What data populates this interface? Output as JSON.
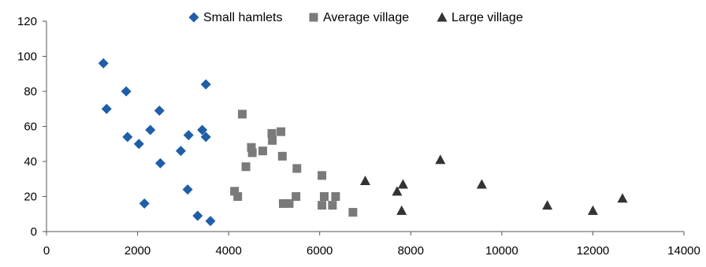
{
  "chart_data": {
    "type": "scatter",
    "title": "",
    "xlabel": "",
    "ylabel": "",
    "xlim": [
      0,
      14000
    ],
    "ylim": [
      0,
      120
    ],
    "x_ticks": [
      0,
      2000,
      4000,
      6000,
      8000,
      10000,
      12000,
      14000
    ],
    "y_ticks": [
      0,
      20,
      40,
      60,
      80,
      100,
      120
    ],
    "grid": false,
    "legend": "top",
    "series": [
      {
        "name": "Small hamlets",
        "marker": "diamond",
        "color": "#1f5ea8",
        "points": [
          {
            "x": 1250,
            "y": 96
          },
          {
            "x": 1320,
            "y": 70
          },
          {
            "x": 1750,
            "y": 80
          },
          {
            "x": 1780,
            "y": 54
          },
          {
            "x": 2030,
            "y": 50
          },
          {
            "x": 2150,
            "y": 16
          },
          {
            "x": 2280,
            "y": 58
          },
          {
            "x": 2480,
            "y": 69
          },
          {
            "x": 2500,
            "y": 39
          },
          {
            "x": 2950,
            "y": 46
          },
          {
            "x": 3100,
            "y": 24
          },
          {
            "x": 3120,
            "y": 55
          },
          {
            "x": 3320,
            "y": 9
          },
          {
            "x": 3420,
            "y": 58
          },
          {
            "x": 3500,
            "y": 84
          },
          {
            "x": 3500,
            "y": 54
          },
          {
            "x": 3600,
            "y": 6
          }
        ]
      },
      {
        "name": "Average village",
        "marker": "square",
        "color": "#7a7a7a",
        "points": [
          {
            "x": 4130,
            "y": 23
          },
          {
            "x": 4200,
            "y": 20
          },
          {
            "x": 4300,
            "y": 67
          },
          {
            "x": 4380,
            "y": 37
          },
          {
            "x": 4500,
            "y": 48
          },
          {
            "x": 4520,
            "y": 45
          },
          {
            "x": 4750,
            "y": 46
          },
          {
            "x": 4950,
            "y": 56
          },
          {
            "x": 4960,
            "y": 52
          },
          {
            "x": 5150,
            "y": 57
          },
          {
            "x": 5180,
            "y": 43
          },
          {
            "x": 5200,
            "y": 16
          },
          {
            "x": 5330,
            "y": 16
          },
          {
            "x": 5480,
            "y": 20
          },
          {
            "x": 5500,
            "y": 36
          },
          {
            "x": 6050,
            "y": 32
          },
          {
            "x": 6050,
            "y": 15
          },
          {
            "x": 6100,
            "y": 20
          },
          {
            "x": 6280,
            "y": 15
          },
          {
            "x": 6350,
            "y": 20
          },
          {
            "x": 6730,
            "y": 11
          }
        ]
      },
      {
        "name": "Large village",
        "marker": "triangle",
        "color": "#333333",
        "points": [
          {
            "x": 7000,
            "y": 29
          },
          {
            "x": 7700,
            "y": 23
          },
          {
            "x": 7800,
            "y": 12
          },
          {
            "x": 7830,
            "y": 27
          },
          {
            "x": 8650,
            "y": 41
          },
          {
            "x": 9560,
            "y": 27
          },
          {
            "x": 11000,
            "y": 15
          },
          {
            "x": 12000,
            "y": 12
          },
          {
            "x": 12650,
            "y": 19
          }
        ]
      }
    ]
  }
}
